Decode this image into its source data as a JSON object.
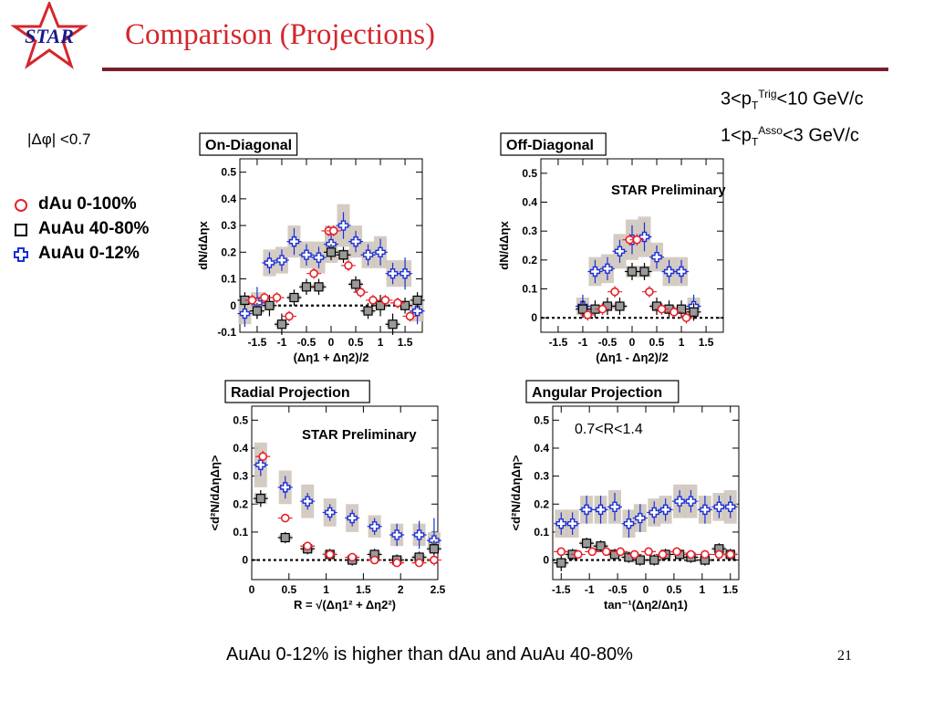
{
  "slide": {
    "title": "Comparison (Projections)",
    "logo_text": "STAR",
    "cut_trig": {
      "pre": "3<p",
      "sub": "T",
      "sup": "Trig",
      "post": "<10 GeV/c"
    },
    "cut_asso": {
      "pre": "1<p",
      "sub": "T",
      "sup": "Asso",
      "post": "<3 GeV/c"
    },
    "dphi_cut": "|Δφ| <0.7",
    "conclusion": "AuAu 0-12% is higher than dAu and AuAu 40-80%",
    "page_number": "21",
    "star_preliminary": "STAR Preliminary",
    "r_window": "0.7<R<1.4"
  },
  "legend": [
    {
      "label": "dAu 0-100%",
      "marker": "circle",
      "color": "#e8202a"
    },
    {
      "label": "AuAu 40-80%",
      "marker": "square",
      "color": "#000000"
    },
    {
      "label": "AuAu 0-12%",
      "marker": "cross",
      "color": "#1a2fd6"
    }
  ],
  "chart_data": [
    {
      "type": "scatter",
      "title": "On-Diagonal",
      "xlabel": "(Δη1 + Δη2)/2",
      "ylabel": "dN/dΔηx",
      "xlim": [
        -1.85,
        1.85
      ],
      "ylim": [
        -0.1,
        0.55
      ],
      "xticks": [
        -1.5,
        -1,
        -0.5,
        0,
        0.5,
        1,
        1.5
      ],
      "xtick_labels": [
        "-1.5",
        "-1",
        "-0.5",
        "0",
        "0.5",
        "1",
        "1.5"
      ],
      "yticks": [
        -0.1,
        0,
        0.1,
        0.2,
        0.3,
        0.4,
        0.5
      ],
      "ytick_labels": [
        "-0.1",
        "0",
        "0.1",
        "0.2",
        "0.3",
        "0.4",
        "0.5"
      ],
      "dashed_zero": true,
      "series": [
        {
          "name": "AuAu 0-12%",
          "marker": "cross",
          "color": "#1a2fd6",
          "x": [
            -1.75,
            -1.5,
            -1.25,
            -1.0,
            -0.75,
            -0.5,
            -0.25,
            0,
            0.25,
            0.5,
            0.75,
            1.0,
            1.25,
            1.5,
            1.75
          ],
          "y": [
            -0.03,
            0.01,
            0.16,
            0.17,
            0.24,
            0.19,
            0.18,
            0.23,
            0.3,
            0.24,
            0.19,
            0.2,
            0.12,
            0.12,
            -0.02
          ],
          "err": [
            0.05,
            0.06,
            0.04,
            0.04,
            0.05,
            0.04,
            0.04,
            0.04,
            0.05,
            0.04,
            0.04,
            0.05,
            0.04,
            0.06,
            0.05
          ],
          "sys": [
            0.04,
            0.04,
            0.05,
            0.05,
            0.06,
            0.05,
            0.06,
            0.07,
            0.08,
            0.06,
            0.05,
            0.06,
            0.05,
            0.05,
            0.04
          ]
        },
        {
          "name": "AuAu 40-80%",
          "marker": "square",
          "color": "#000000",
          "x": [
            -1.75,
            -1.5,
            -1.25,
            -1.0,
            -0.75,
            -0.5,
            -0.25,
            0,
            0.25,
            0.5,
            0.75,
            1.0,
            1.25,
            1.5,
            1.75
          ],
          "y": [
            0.02,
            -0.02,
            0.0,
            -0.07,
            0.03,
            0.07,
            0.07,
            0.2,
            0.19,
            0.08,
            -0.02,
            0.0,
            -0.07,
            0.0,
            0.02
          ],
          "err": [
            0.03,
            0.03,
            0.04,
            0.04,
            0.03,
            0.03,
            0.03,
            0.03,
            0.03,
            0.03,
            0.03,
            0.04,
            0.04,
            0.03,
            0.03
          ],
          "sys": [
            0.01,
            0.01,
            0.01,
            0.01,
            0.01,
            0.01,
            0.01,
            0.02,
            0.02,
            0.01,
            0.01,
            0.01,
            0.01,
            0.01,
            0.01
          ]
        },
        {
          "name": "dAu 0-100%",
          "marker": "circle",
          "color": "#e8202a",
          "x": [
            -1.6,
            -1.35,
            -1.1,
            -0.85,
            -0.35,
            -0.05,
            0.05,
            0.35,
            0.6,
            0.85,
            1.1,
            1.35,
            1.6
          ],
          "y": [
            0.02,
            0.03,
            0.03,
            -0.04,
            0.12,
            0.28,
            0.28,
            0.15,
            0.05,
            0.02,
            0.02,
            0.01,
            -0.04
          ],
          "err": [
            0.02,
            0.02,
            0.02,
            0.02,
            0.02,
            0.02,
            0.02,
            0.02,
            0.02,
            0.02,
            0.02,
            0.02,
            0.02
          ],
          "sys": [
            0,
            0,
            0,
            0,
            0,
            0,
            0,
            0,
            0,
            0,
            0,
            0,
            0
          ]
        }
      ]
    },
    {
      "type": "scatter",
      "title": "Off-Diagonal",
      "xlabel": "(Δη1 - Δη2)/2",
      "ylabel": "dN/dΔηx",
      "xlim": [
        -1.85,
        1.85
      ],
      "ylim": [
        -0.05,
        0.55
      ],
      "xticks": [
        -1.5,
        -1,
        -0.5,
        0,
        0.5,
        1,
        1.5
      ],
      "xtick_labels": [
        "-1.5",
        "-1",
        "-0.5",
        "0",
        "0.5",
        "1",
        "1.5"
      ],
      "yticks": [
        0,
        0.1,
        0.2,
        0.3,
        0.4,
        0.5
      ],
      "ytick_labels": [
        "0",
        "0.1",
        "0.2",
        "0.3",
        "0.4",
        "0.5"
      ],
      "dashed_zero": true,
      "series": [
        {
          "name": "AuAu 0-12%",
          "marker": "cross",
          "color": "#1a2fd6",
          "x": [
            -1.0,
            -0.75,
            -0.5,
            -0.25,
            0,
            0.25,
            0.5,
            0.75,
            1.0,
            1.25
          ],
          "y": [
            0.04,
            0.16,
            0.17,
            0.23,
            0.27,
            0.28,
            0.21,
            0.16,
            0.16,
            0.04
          ],
          "err": [
            0.04,
            0.04,
            0.04,
            0.04,
            0.05,
            0.05,
            0.04,
            0.04,
            0.04,
            0.04
          ],
          "sys": [
            0.03,
            0.05,
            0.05,
            0.06,
            0.07,
            0.07,
            0.05,
            0.05,
            0.05,
            0.03
          ]
        },
        {
          "name": "AuAu 40-80%",
          "marker": "square",
          "color": "#000000",
          "x": [
            -1.0,
            -0.75,
            -0.5,
            -0.25,
            0,
            0.25,
            0.5,
            0.75,
            1.0,
            1.25
          ],
          "y": [
            0.03,
            0.03,
            0.04,
            0.04,
            0.16,
            0.16,
            0.04,
            0.03,
            0.03,
            0.02
          ],
          "err": [
            0.03,
            0.03,
            0.03,
            0.03,
            0.03,
            0.03,
            0.03,
            0.03,
            0.03,
            0.03
          ],
          "sys": [
            0.01,
            0.01,
            0.01,
            0.01,
            0.02,
            0.02,
            0.01,
            0.01,
            0.01,
            0.01
          ]
        },
        {
          "name": "dAu 0-100%",
          "marker": "circle",
          "color": "#e8202a",
          "x": [
            -0.9,
            -0.6,
            -0.35,
            -0.05,
            0.1,
            0.35,
            0.6,
            0.85,
            1.1
          ],
          "y": [
            0.01,
            0.03,
            0.09,
            0.27,
            0.27,
            0.09,
            0.03,
            0.02,
            0.0
          ],
          "err": [
            0.02,
            0.02,
            0.02,
            0.02,
            0.02,
            0.02,
            0.02,
            0.02,
            0.02
          ],
          "sys": [
            0,
            0,
            0,
            0,
            0,
            0,
            0,
            0,
            0
          ]
        }
      ]
    },
    {
      "type": "scatter",
      "title": "Radial Projection",
      "xlabel": "R = √(Δη1² + Δη2²)",
      "ylabel": "<d²N/dΔηΔη>",
      "xlim": [
        0,
        2.5
      ],
      "ylim": [
        -0.07,
        0.55
      ],
      "xticks": [
        0,
        0.5,
        1,
        1.5,
        2,
        2.5
      ],
      "xtick_labels": [
        "0",
        "0.5",
        "1",
        "1.5",
        "2",
        "2.5"
      ],
      "yticks": [
        0,
        0.1,
        0.2,
        0.3,
        0.4,
        0.5
      ],
      "ytick_labels": [
        "0",
        "0.1",
        "0.2",
        "0.3",
        "0.4",
        "0.5"
      ],
      "dashed_zero": true,
      "series": [
        {
          "name": "AuAu 0-12%",
          "marker": "cross",
          "color": "#1a2fd6",
          "x": [
            0.12,
            0.45,
            0.75,
            1.05,
            1.35,
            1.65,
            1.95,
            2.25,
            2.45
          ],
          "y": [
            0.34,
            0.26,
            0.21,
            0.17,
            0.15,
            0.12,
            0.09,
            0.09,
            0.07
          ],
          "err": [
            0.04,
            0.04,
            0.03,
            0.03,
            0.03,
            0.03,
            0.04,
            0.05,
            0.08
          ],
          "sys": [
            0.08,
            0.06,
            0.06,
            0.05,
            0.05,
            0.04,
            0.04,
            0.04,
            0.03
          ]
        },
        {
          "name": "AuAu 40-80%",
          "marker": "square",
          "color": "#000000",
          "x": [
            0.12,
            0.45,
            0.75,
            1.05,
            1.35,
            1.65,
            1.95,
            2.25,
            2.45
          ],
          "y": [
            0.22,
            0.08,
            0.04,
            0.02,
            0.0,
            0.02,
            0.0,
            0.01,
            0.04
          ],
          "err": [
            0.03,
            0.02,
            0.02,
            0.02,
            0.02,
            0.02,
            0.02,
            0.02,
            0.03
          ],
          "sys": [
            0.02,
            0.01,
            0.01,
            0.01,
            0.01,
            0.01,
            0.01,
            0.01,
            0.01
          ]
        },
        {
          "name": "dAu 0-100%",
          "marker": "circle",
          "color": "#e8202a",
          "x": [
            0.15,
            0.45,
            0.75,
            1.05,
            1.35,
            1.65,
            1.95,
            2.25,
            2.45
          ],
          "y": [
            0.37,
            0.15,
            0.05,
            0.02,
            0.01,
            0.0,
            -0.01,
            -0.01,
            0.0
          ],
          "err": [
            0.02,
            0.01,
            0.01,
            0.01,
            0.01,
            0.01,
            0.01,
            0.01,
            0.02
          ],
          "sys": [
            0,
            0,
            0,
            0,
            0,
            0,
            0,
            0,
            0
          ]
        }
      ]
    },
    {
      "type": "scatter",
      "title": "Angular Projection",
      "xlabel": "tan⁻¹(Δη2/Δη1)",
      "ylabel": "<d²N/dΔηΔη>",
      "xlim": [
        -1.65,
        1.65
      ],
      "ylim": [
        -0.07,
        0.55
      ],
      "xticks": [
        -1.5,
        -1,
        -0.5,
        0,
        0.5,
        1,
        1.5
      ],
      "xtick_labels": [
        "-1.5",
        "-1",
        "-0.5",
        "0",
        "0.5",
        "1",
        "1.5"
      ],
      "yticks": [
        0,
        0.1,
        0.2,
        0.3,
        0.4,
        0.5
      ],
      "ytick_labels": [
        "0",
        "0.1",
        "0.2",
        "0.3",
        "0.4",
        "0.5"
      ],
      "dashed_zero": true,
      "series": [
        {
          "name": "AuAu 0-12%",
          "marker": "cross",
          "color": "#1a2fd6",
          "x": [
            -1.5,
            -1.3,
            -1.05,
            -0.8,
            -0.55,
            -0.3,
            -0.1,
            0.15,
            0.35,
            0.6,
            0.8,
            1.05,
            1.3,
            1.5
          ],
          "y": [
            0.13,
            0.13,
            0.18,
            0.18,
            0.19,
            0.13,
            0.15,
            0.17,
            0.18,
            0.21,
            0.21,
            0.18,
            0.19,
            0.19
          ],
          "err": [
            0.04,
            0.04,
            0.05,
            0.05,
            0.05,
            0.05,
            0.05,
            0.04,
            0.04,
            0.04,
            0.04,
            0.05,
            0.04,
            0.04
          ],
          "sys": [
            0.05,
            0.05,
            0.05,
            0.05,
            0.06,
            0.05,
            0.05,
            0.05,
            0.05,
            0.06,
            0.06,
            0.05,
            0.05,
            0.06
          ]
        },
        {
          "name": "AuAu 40-80%",
          "marker": "square",
          "color": "#000000",
          "x": [
            -1.5,
            -1.3,
            -1.05,
            -0.8,
            -0.55,
            -0.3,
            -0.1,
            0.15,
            0.35,
            0.6,
            0.8,
            1.05,
            1.3,
            1.5
          ],
          "y": [
            -0.01,
            0.02,
            0.06,
            0.05,
            0.02,
            0.01,
            0.0,
            0.0,
            0.02,
            0.02,
            0.01,
            0.0,
            0.04,
            0.02
          ],
          "err": [
            0.03,
            0.02,
            0.02,
            0.02,
            0.02,
            0.02,
            0.02,
            0.02,
            0.02,
            0.02,
            0.02,
            0.02,
            0.02,
            0.02
          ],
          "sys": [
            0.01,
            0.01,
            0.01,
            0.01,
            0.01,
            0.01,
            0.01,
            0.01,
            0.01,
            0.01,
            0.01,
            0.01,
            0.01,
            0.01
          ]
        },
        {
          "name": "dAu 0-100%",
          "marker": "circle",
          "color": "#e8202a",
          "x": [
            -1.5,
            -1.2,
            -0.95,
            -0.7,
            -0.45,
            -0.2,
            0.05,
            0.3,
            0.55,
            0.8,
            1.05,
            1.3,
            1.5
          ],
          "y": [
            0.03,
            0.02,
            0.03,
            0.03,
            0.03,
            0.02,
            0.03,
            0.02,
            0.03,
            0.02,
            0.02,
            0.02,
            0.02
          ],
          "err": [
            0.01,
            0.01,
            0.01,
            0.01,
            0.01,
            0.01,
            0.01,
            0.01,
            0.01,
            0.01,
            0.01,
            0.01,
            0.01
          ],
          "sys": [
            0,
            0,
            0,
            0,
            0,
            0,
            0,
            0,
            0,
            0,
            0,
            0,
            0
          ]
        }
      ]
    }
  ]
}
